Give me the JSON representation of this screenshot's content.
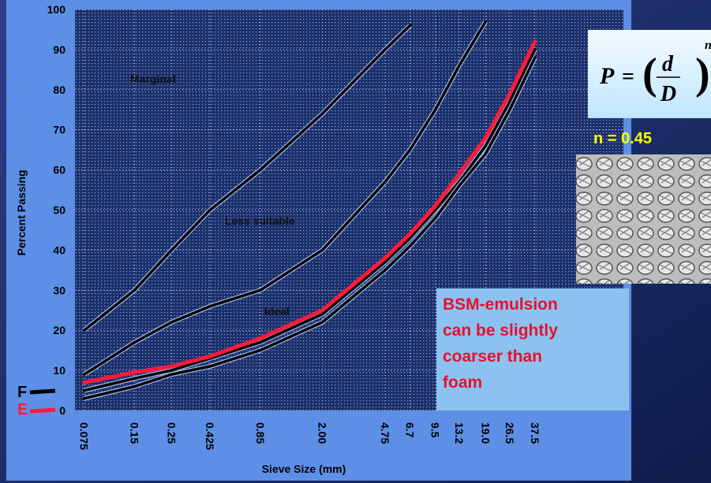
{
  "chart_data": {
    "type": "line",
    "x_label": "Sieve Size (mm)",
    "y_label": "Percent Passing",
    "x": [
      0.075,
      0.15,
      0.25,
      0.425,
      0.85,
      2.0,
      4.75,
      6.7,
      9.5,
      13.2,
      19.0,
      26.5,
      37.5
    ],
    "log_x": true,
    "grid": true,
    "xlim": [
      0.066,
      127
    ],
    "ylim": [
      0,
      100
    ],
    "xticks": [
      0.075,
      0.15,
      0.25,
      0.425,
      0.85,
      {
        "value": 2.0,
        "label": "2.00"
      },
      4.75,
      6.7,
      9.5,
      13.2,
      {
        "value": 19.0,
        "label": "19.0"
      },
      26.5,
      37.5
    ],
    "yticks": [
      0,
      10,
      20,
      30,
      40,
      50,
      60,
      70,
      80,
      90,
      100
    ],
    "series": [
      {
        "color": "#000000",
        "values": [
          20,
          30,
          40,
          50,
          60,
          74,
          90,
          96,
          null,
          null,
          null,
          null,
          null
        ]
      },
      {
        "color": "#000000",
        "values": [
          9,
          17,
          22,
          26,
          30,
          40,
          57,
          65,
          75,
          86,
          97,
          null,
          null
        ]
      },
      {
        "color": "#000000",
        "values": [
          5,
          8,
          10,
          13,
          17,
          24,
          37,
          43,
          50,
          57,
          66,
          77,
          90
        ]
      },
      {
        "color": "#000000",
        "values": [
          3,
          6,
          9,
          11,
          15,
          22,
          35,
          41,
          48,
          56,
          64,
          75,
          88
        ]
      },
      {
        "color": "#ff1a3c",
        "values": [
          7,
          9.5,
          11,
          13.5,
          18,
          25,
          38,
          44,
          51,
          59,
          68,
          79,
          92
        ]
      }
    ],
    "regions": [
      "Marginal",
      "Less suitable",
      "Ideal"
    ],
    "legend_items": [
      {
        "label": "F",
        "color": "#000000"
      },
      {
        "label": "E",
        "color": "#ff1a3c"
      }
    ],
    "formula": {
      "lhs": "P",
      "equals": "=",
      "numerator": "d",
      "denominator": "D",
      "exponent": "n"
    },
    "n_note": "n = 0.45",
    "callout": [
      "BSM-emulsion",
      "can be slightly",
      "coarser than",
      "foam"
    ]
  }
}
